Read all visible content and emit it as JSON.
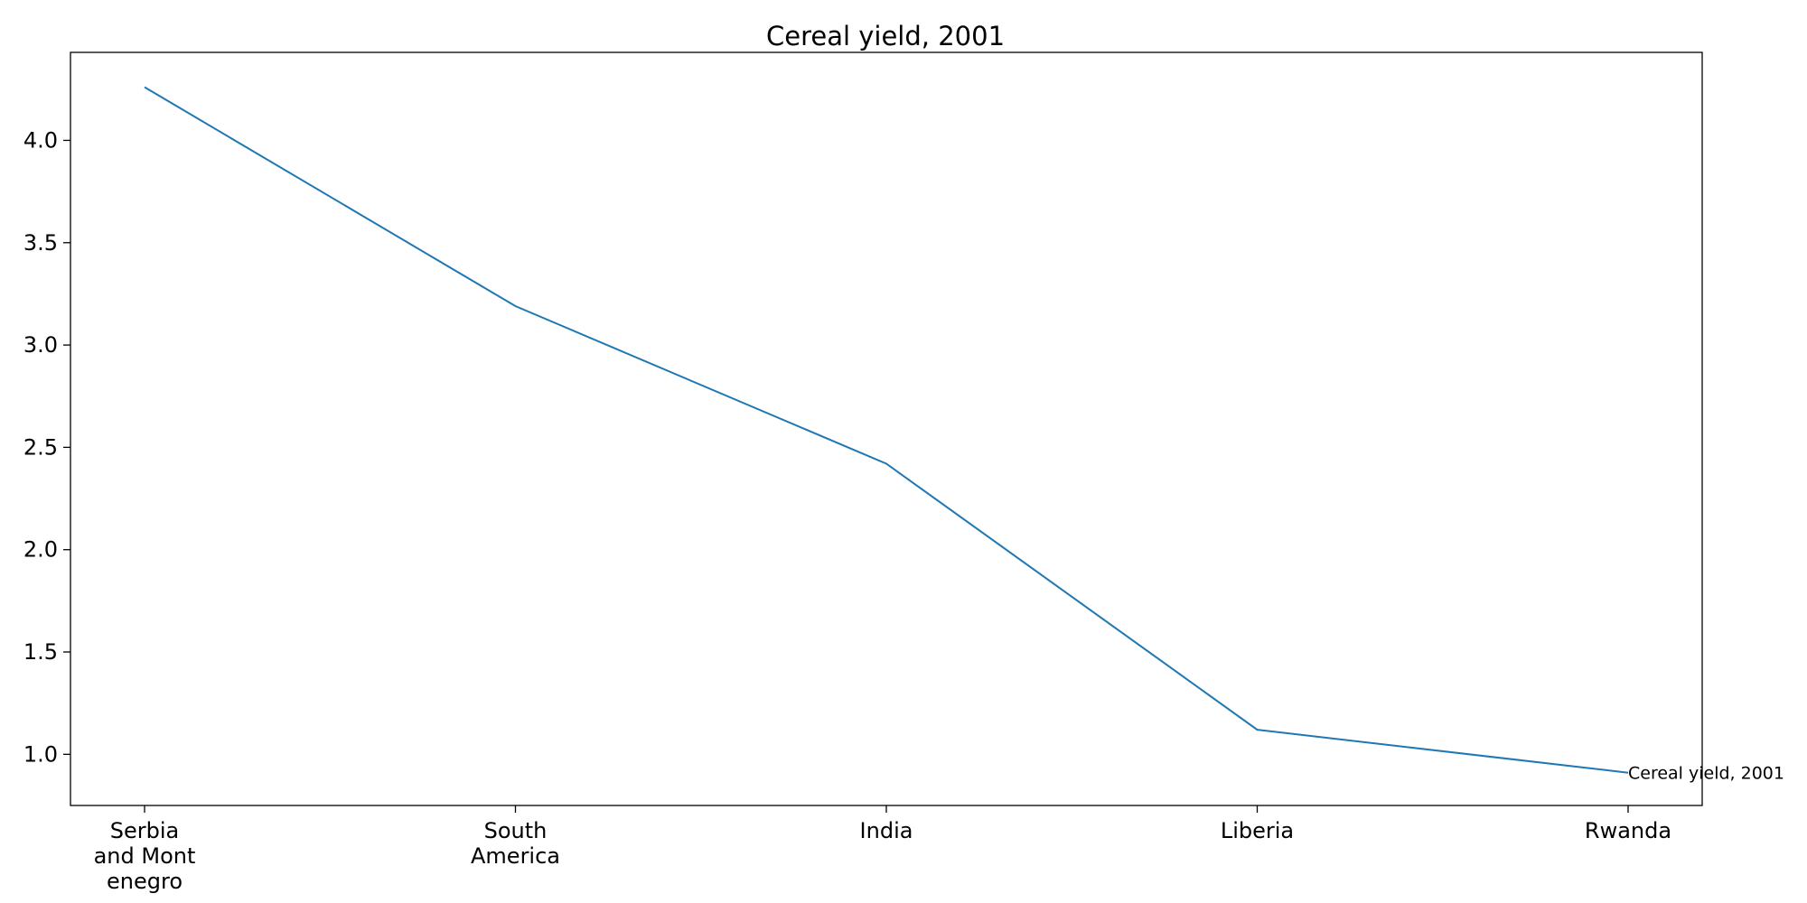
{
  "chart_data": {
    "type": "line",
    "title": "Cereal yield, 2001",
    "xlabel": "",
    "ylabel": "",
    "categories": [
      [
        "Serbia",
        "and Mont",
        "enegro"
      ],
      [
        "South",
        "America"
      ],
      [
        "India"
      ],
      [
        "Liberia"
      ],
      [
        "Rwanda"
      ]
    ],
    "series": [
      {
        "name": "Cereal yield, 2001",
        "values": [
          4.26,
          3.19,
          2.42,
          1.12,
          0.91
        ],
        "color": "#1f77b4"
      }
    ],
    "yticks": [
      "1.0",
      "1.5",
      "2.0",
      "2.5",
      "3.0",
      "3.5",
      "4.0"
    ],
    "ylim": [
      0.75,
      4.43
    ],
    "grid": false,
    "legend": "none",
    "annotation": "Cereal yield, 2001"
  }
}
